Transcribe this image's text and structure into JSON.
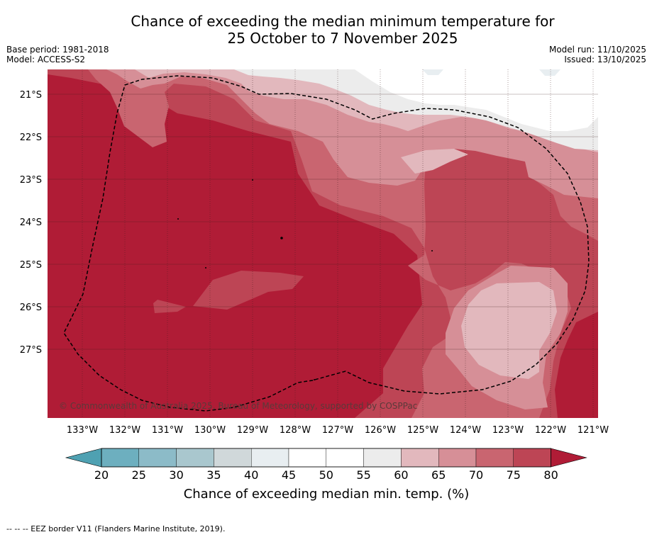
{
  "header": {
    "title_line1": "Chance of exceeding the median minimum temperature for",
    "title_line2": "25 October to 7 November 2025",
    "base_period": "Base period: 1981-2018",
    "model": "Model: ACCESS-S2",
    "model_run": "Model run: 11/10/2025",
    "issued": "Issued: 13/10/2025"
  },
  "map": {
    "lon_labels": [
      "133°W",
      "132°W",
      "131°W",
      "130°W",
      "129°W",
      "128°W",
      "127°W",
      "126°W",
      "125°W",
      "124°W",
      "123°W",
      "122°W",
      "121°W"
    ],
    "lat_labels": [
      "21°S",
      "22°S",
      "23°S",
      "24°S",
      "25°S",
      "26°S",
      "27°S"
    ],
    "copyright": "© Commonwealth of Australia 2025, Bureau of Meteorology, supported by COSPPac",
    "colors": {
      "c50_55": "#ffffff",
      "c55_60": "#ececec",
      "c60_65": "#e2b8bd",
      "c65_70": "#d68f97",
      "c70_75": "#c96570",
      "c75_80": "#bd4555",
      "c80plus": "#b01c36"
    }
  },
  "colorbar": {
    "ticks": [
      "20",
      "25",
      "30",
      "35",
      "40",
      "45",
      "50",
      "55",
      "60",
      "65",
      "70",
      "75",
      "80"
    ],
    "colors": [
      "#6dafbf",
      "#8cbbc8",
      "#a9c7ce",
      "#d0d8da",
      "#e8eef1",
      "#ffffff",
      "#ffffff",
      "#ececec",
      "#e2b8bd",
      "#d68f97",
      "#c96570",
      "#bd4555"
    ],
    "under_color": "#4fa1b2",
    "over_color": "#b01c36",
    "label": "Chance of exceeding median min. temp. (%)"
  },
  "footnote": "--  --  -- EEZ border V11 (Flanders Marine Institute, 2019)."
}
